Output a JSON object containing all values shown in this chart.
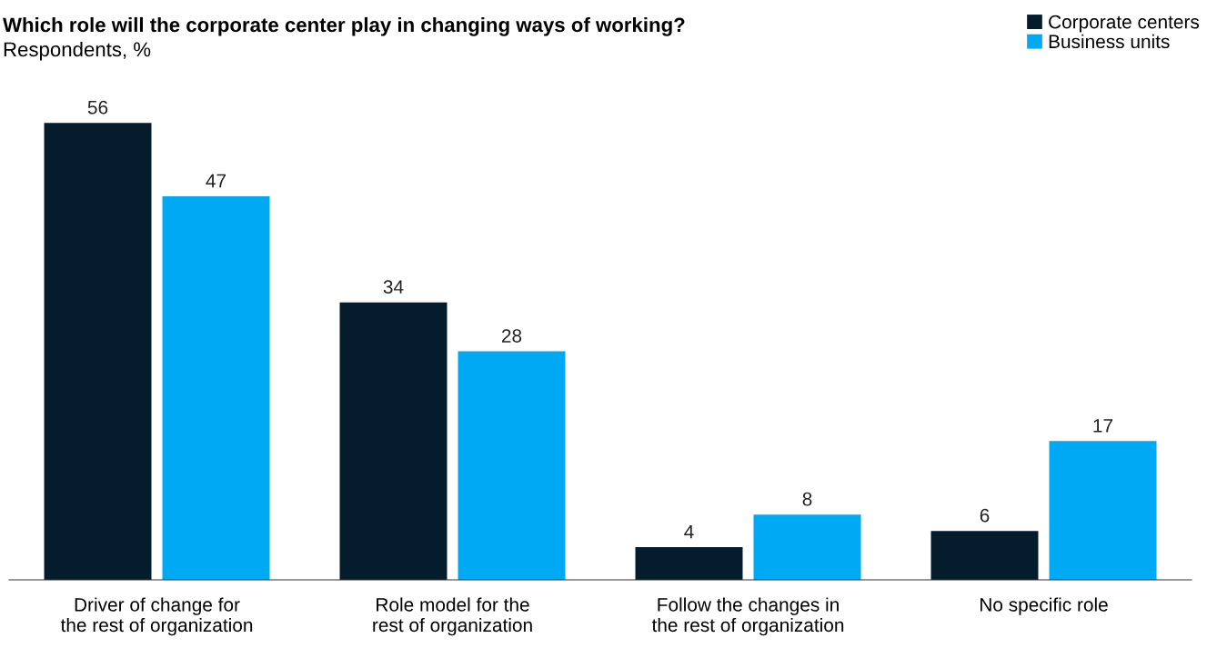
{
  "chart_data": {
    "type": "bar",
    "title": "Which role will the corporate center play in changing ways of working?",
    "subtitle": "Respondents, %",
    "categories": [
      "Driver of change for\nthe rest of organization",
      "Role model for the\nrest of organization",
      "Follow the changes in\nthe rest of organization",
      "No specific role"
    ],
    "series": [
      {
        "name": "Corporate centers",
        "color": "#051c2c",
        "values": [
          56,
          34,
          4,
          6
        ]
      },
      {
        "name": "Business units",
        "color": "#00a9f4",
        "values": [
          47,
          28,
          8,
          17
        ]
      }
    ],
    "data_labels": true,
    "legend": "top right",
    "grid": false
  }
}
